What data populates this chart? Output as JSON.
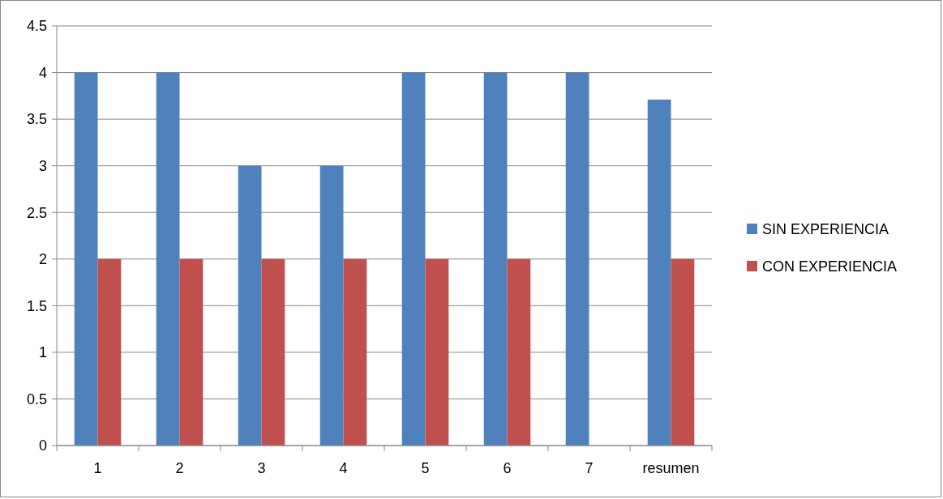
{
  "chart_data": {
    "type": "bar",
    "categories": [
      "1",
      "2",
      "3",
      "4",
      "5",
      "6",
      "7",
      "resumen"
    ],
    "series": [
      {
        "name": "SIN EXPERIENCIA",
        "color": "#4f81bd",
        "values": [
          4,
          4,
          3,
          3,
          4,
          4,
          4,
          3.71
        ]
      },
      {
        "name": "CON EXPERIENCIA",
        "color": "#c0504d",
        "values": [
          2,
          2,
          2,
          2,
          2,
          2,
          null,
          2
        ]
      }
    ],
    "ylim": [
      0,
      4.5
    ],
    "yticks": [
      0,
      0.5,
      1,
      1.5,
      2,
      2.5,
      3,
      3.5,
      4,
      4.5
    ],
    "grid": "y",
    "legend": "right"
  }
}
